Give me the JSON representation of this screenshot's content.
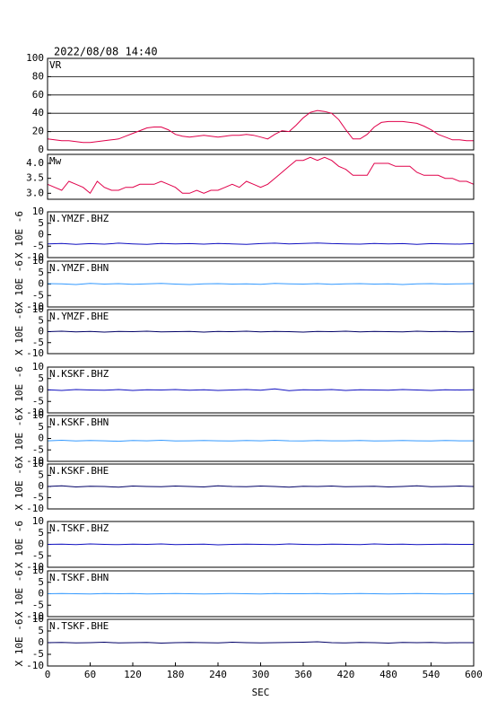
{
  "chart_data": [
    {
      "type": "line",
      "title": "2022/08/08 14:40",
      "label": "VR",
      "xlim": [
        0,
        600
      ],
      "ylim": [
        0,
        100
      ],
      "yticks": [
        0,
        20,
        40,
        60,
        80,
        100
      ],
      "grid": true,
      "x": [
        0,
        10,
        20,
        30,
        40,
        50,
        60,
        70,
        80,
        90,
        100,
        110,
        120,
        130,
        140,
        150,
        160,
        170,
        180,
        190,
        200,
        210,
        220,
        230,
        240,
        250,
        260,
        270,
        280,
        290,
        300,
        310,
        320,
        330,
        340,
        350,
        360,
        370,
        380,
        390,
        400,
        410,
        420,
        430,
        440,
        450,
        460,
        470,
        480,
        490,
        500,
        510,
        520,
        530,
        540,
        550,
        560,
        570,
        580,
        590,
        600
      ],
      "series": [
        {
          "color": "#e0004a",
          "values": [
            12,
            11,
            10,
            10,
            9,
            8,
            8,
            9,
            10,
            11,
            12,
            15,
            18,
            21,
            24,
            25,
            25,
            22,
            17,
            15,
            14,
            15,
            16,
            15,
            14,
            15,
            16,
            16,
            17,
            16,
            14,
            12,
            17,
            21,
            20,
            27,
            35,
            41,
            43,
            42,
            40,
            33,
            22,
            12,
            12,
            17,
            25,
            30,
            31,
            31,
            31,
            30,
            29,
            26,
            22,
            17,
            14,
            11,
            11,
            10,
            10
          ]
        }
      ]
    },
    {
      "type": "line",
      "label": "Mw",
      "xlim": [
        0,
        600
      ],
      "ylim": [
        2.8,
        4.3
      ],
      "yticks": [
        {
          "value": 3,
          "label": "3.0"
        },
        3.5,
        {
          "value": 4,
          "label": "4.0"
        }
      ],
      "grid": false,
      "x": [
        0,
        10,
        20,
        30,
        40,
        50,
        60,
        70,
        80,
        90,
        100,
        110,
        120,
        130,
        140,
        150,
        160,
        170,
        180,
        190,
        200,
        210,
        220,
        230,
        240,
        250,
        260,
        270,
        280,
        290,
        300,
        310,
        320,
        330,
        340,
        350,
        360,
        370,
        380,
        390,
        400,
        410,
        420,
        430,
        440,
        450,
        460,
        470,
        480,
        490,
        500,
        510,
        520,
        530,
        540,
        550,
        560,
        570,
        580,
        590,
        600
      ],
      "series": [
        {
          "color": "#e0004a",
          "values": [
            3.3,
            3.2,
            3.1,
            3.4,
            3.3,
            3.2,
            3.0,
            3.4,
            3.2,
            3.1,
            3.1,
            3.2,
            3.2,
            3.3,
            3.3,
            3.3,
            3.4,
            3.3,
            3.2,
            3.0,
            3.0,
            3.1,
            3.0,
            3.1,
            3.1,
            3.2,
            3.3,
            3.2,
            3.4,
            3.3,
            3.2,
            3.3,
            3.5,
            3.7,
            3.9,
            4.1,
            4.1,
            4.2,
            4.1,
            4.2,
            4.1,
            3.9,
            3.8,
            3.6,
            3.6,
            3.6,
            4.0,
            4.0,
            4.0,
            3.9,
            3.9,
            3.9,
            3.7,
            3.6,
            3.6,
            3.6,
            3.5,
            3.5,
            3.4,
            3.4,
            3.3
          ]
        }
      ]
    },
    {
      "type": "line",
      "label": "N.YMZF.BHZ",
      "ylabel": "X 10E -6",
      "xlim": [
        0,
        600
      ],
      "ylim": [
        -10,
        10
      ],
      "yticks": [
        -10,
        -5,
        0,
        5,
        10
      ],
      "x": [
        0,
        20,
        40,
        60,
        80,
        100,
        120,
        140,
        160,
        180,
        200,
        220,
        240,
        260,
        280,
        300,
        320,
        340,
        360,
        380,
        400,
        420,
        440,
        460,
        480,
        500,
        520,
        540,
        560,
        580,
        600
      ],
      "series": [
        {
          "color": "#1010c0",
          "values": [
            -4,
            -3.8,
            -4.2,
            -3.9,
            -4.1,
            -3.7,
            -4,
            -4.2,
            -3.8,
            -4,
            -3.9,
            -4.1,
            -3.8,
            -4,
            -4.2,
            -3.9,
            -3.7,
            -4,
            -3.8,
            -3.6,
            -3.9,
            -4,
            -4.1,
            -3.8,
            -4,
            -3.9,
            -4.2,
            -3.9,
            -4,
            -4.1,
            -3.9
          ]
        }
      ]
    },
    {
      "type": "line",
      "label": "N.YMZF.BHN",
      "ylabel": "X 10E -6",
      "xlim": [
        0,
        600
      ],
      "ylim": [
        -10,
        10
      ],
      "yticks": [
        -10,
        -5,
        0,
        5,
        10
      ],
      "x": [
        0,
        20,
        40,
        60,
        80,
        100,
        120,
        140,
        160,
        180,
        200,
        220,
        240,
        260,
        280,
        300,
        320,
        340,
        360,
        380,
        400,
        420,
        440,
        460,
        480,
        500,
        520,
        540,
        560,
        580,
        600
      ],
      "series": [
        {
          "color": "#3399ff",
          "values": [
            0.2,
            0.1,
            -0.2,
            0.3,
            0,
            0.2,
            -0.1,
            0.1,
            0.3,
            0,
            -0.2,
            0.1,
            0.2,
            0,
            0.1,
            -0.1,
            0.3,
            0.1,
            0,
            0.2,
            -0.1,
            0.1,
            0.2,
            0,
            0.1,
            -0.2,
            0.1,
            0.2,
            0,
            0.1,
            0.2
          ]
        }
      ]
    },
    {
      "type": "line",
      "label": "N.YMZF.BHE",
      "ylabel": "X 10E -6",
      "xlim": [
        0,
        600
      ],
      "ylim": [
        -10,
        10
      ],
      "yticks": [
        -10,
        -5,
        0,
        5,
        10
      ],
      "x": [
        0,
        20,
        40,
        60,
        80,
        100,
        120,
        140,
        160,
        180,
        200,
        220,
        240,
        260,
        280,
        300,
        320,
        340,
        360,
        380,
        400,
        420,
        440,
        460,
        480,
        500,
        520,
        540,
        560,
        580,
        600
      ],
      "series": [
        {
          "color": "#000066",
          "values": [
            0,
            0.2,
            -0.1,
            0.1,
            -0.2,
            0.1,
            0,
            0.2,
            -0.1,
            0,
            0.1,
            -0.2,
            0.1,
            0,
            0.2,
            -0.1,
            0.1,
            0,
            -0.2,
            0.1,
            0,
            0.2,
            -0.1,
            0.1,
            0,
            -0.1,
            0.2,
            0,
            0.1,
            -0.1,
            0
          ]
        }
      ]
    },
    {
      "type": "line",
      "label": "N.KSKF.BHZ",
      "ylabel": "X 10E -6",
      "xlim": [
        0,
        600
      ],
      "ylim": [
        -10,
        10
      ],
      "yticks": [
        -10,
        -5,
        0,
        5,
        10
      ],
      "x": [
        0,
        20,
        40,
        60,
        80,
        100,
        120,
        140,
        160,
        180,
        200,
        220,
        240,
        260,
        280,
        300,
        320,
        340,
        360,
        380,
        400,
        420,
        440,
        460,
        480,
        500,
        520,
        540,
        560,
        580,
        600
      ],
      "series": [
        {
          "color": "#1010c0",
          "values": [
            0.1,
            -0.2,
            0.2,
            0,
            -0.1,
            0.2,
            -0.2,
            0.1,
            0,
            0.2,
            -0.1,
            0.1,
            -0.2,
            0,
            0.2,
            -0.1,
            0.5,
            -0.3,
            0.1,
            0,
            0.2,
            -0.2,
            0.1,
            0,
            -0.1,
            0.2,
            0,
            -0.2,
            0.1,
            0,
            0.1
          ]
        }
      ]
    },
    {
      "type": "line",
      "label": "N.KSKF.BHN",
      "ylabel": "X 10E -6",
      "xlim": [
        0,
        600
      ],
      "ylim": [
        -10,
        10
      ],
      "yticks": [
        -10,
        -5,
        0,
        5,
        10
      ],
      "x": [
        0,
        20,
        40,
        60,
        80,
        100,
        120,
        140,
        160,
        180,
        200,
        220,
        240,
        260,
        280,
        300,
        320,
        340,
        360,
        380,
        400,
        420,
        440,
        460,
        480,
        500,
        520,
        540,
        560,
        580,
        600
      ],
      "series": [
        {
          "color": "#3399ff",
          "values": [
            -1,
            -0.8,
            -1.1,
            -0.9,
            -1,
            -1.2,
            -0.9,
            -1,
            -0.8,
            -1.1,
            -1,
            -0.9,
            -1,
            -1.1,
            -0.9,
            -1,
            -0.8,
            -1,
            -1.1,
            -0.9,
            -1,
            -1,
            -0.9,
            -1.1,
            -1,
            -0.9,
            -1,
            -1.1,
            -0.9,
            -1,
            -1
          ]
        }
      ]
    },
    {
      "type": "line",
      "label": "N.KSKF.BHE",
      "ylabel": "X 10E -6",
      "xlim": [
        0,
        600
      ],
      "ylim": [
        -10,
        10
      ],
      "yticks": [
        -10,
        -5,
        0,
        5,
        10
      ],
      "x": [
        0,
        20,
        40,
        60,
        80,
        100,
        120,
        140,
        160,
        180,
        200,
        220,
        240,
        260,
        280,
        300,
        320,
        340,
        360,
        380,
        400,
        420,
        440,
        460,
        480,
        500,
        520,
        540,
        560,
        580,
        600
      ],
      "series": [
        {
          "color": "#000066",
          "values": [
            0,
            0.3,
            -0.2,
            0.1,
            0,
            -0.3,
            0.2,
            0,
            -0.1,
            0.2,
            0,
            -0.2,
            0.3,
            0,
            -0.1,
            0.2,
            0,
            -0.3,
            0.1,
            0,
            0.2,
            -0.1,
            0,
            0.1,
            -0.2,
            0,
            0.3,
            -0.1,
            0,
            0.2,
            0
          ]
        }
      ]
    },
    {
      "type": "line",
      "label": "N.TSKF.BHZ",
      "ylabel": "X 10E -6",
      "xlim": [
        0,
        600
      ],
      "ylim": [
        -10,
        10
      ],
      "yticks": [
        -10,
        -5,
        0,
        5,
        10
      ],
      "x": [
        0,
        20,
        40,
        60,
        80,
        100,
        120,
        140,
        160,
        180,
        200,
        220,
        240,
        260,
        280,
        300,
        320,
        340,
        360,
        380,
        400,
        420,
        440,
        460,
        480,
        500,
        520,
        540,
        560,
        580,
        600
      ],
      "series": [
        {
          "color": "#1010c0",
          "values": [
            0,
            0.1,
            -0.1,
            0.2,
            0,
            -0.1,
            0.1,
            0,
            0.2,
            -0.1,
            0,
            0.1,
            -0.2,
            0,
            0.1,
            0,
            -0.1,
            0.2,
            0,
            -0.1,
            0.1,
            0,
            -0.1,
            0.2,
            0,
            0.1,
            -0.1,
            0,
            0.1,
            0,
            0
          ]
        }
      ]
    },
    {
      "type": "line",
      "label": "N.TSKF.BHN",
      "ylabel": "X 10E -6",
      "xlim": [
        0,
        600
      ],
      "ylim": [
        -10,
        10
      ],
      "yticks": [
        -10,
        -5,
        0,
        5,
        10
      ],
      "x": [
        0,
        20,
        40,
        60,
        80,
        100,
        120,
        140,
        160,
        180,
        200,
        220,
        240,
        260,
        280,
        300,
        320,
        340,
        360,
        380,
        400,
        420,
        440,
        460,
        480,
        500,
        520,
        540,
        560,
        580,
        600
      ],
      "series": [
        {
          "color": "#3399ff",
          "values": [
            0,
            0.1,
            0,
            -0.1,
            0.1,
            0,
            0.1,
            -0.1,
            0,
            0.1,
            0,
            -0.1,
            0,
            0.1,
            0,
            -0.1,
            0.1,
            0,
            0,
            0.1,
            -0.1,
            0,
            0.1,
            0,
            -0.1,
            0,
            0.1,
            0,
            -0.1,
            0,
            0
          ]
        }
      ]
    },
    {
      "type": "line",
      "label": "N.TSKF.BHE",
      "ylabel": "X 10E -6",
      "xlim": [
        0,
        600
      ],
      "ylim": [
        -10,
        10
      ],
      "yticks": [
        -10,
        -5,
        0,
        5,
        10
      ],
      "xticks": [
        0,
        60,
        120,
        180,
        240,
        300,
        360,
        420,
        480,
        540,
        600
      ],
      "xlabel": "SEC",
      "x": [
        0,
        20,
        40,
        60,
        80,
        100,
        120,
        140,
        160,
        180,
        200,
        220,
        240,
        260,
        280,
        300,
        320,
        340,
        360,
        380,
        400,
        420,
        440,
        460,
        480,
        500,
        520,
        540,
        560,
        580,
        600
      ],
      "series": [
        {
          "color": "#000066",
          "values": [
            0,
            0.1,
            -0.1,
            0,
            0.2,
            -0.1,
            0,
            0.1,
            -0.2,
            0,
            0.1,
            0,
            -0.1,
            0.2,
            0,
            -0.1,
            0,
            0.1,
            0.2,
            0.4,
            0,
            -0.1,
            0.1,
            0,
            -0.2,
            0.1,
            0,
            0.1,
            -0.1,
            0,
            0
          ]
        }
      ]
    }
  ]
}
